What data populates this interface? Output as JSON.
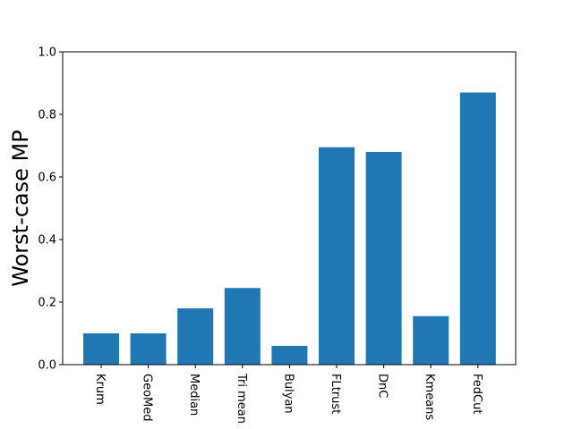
{
  "chart_data": {
    "type": "bar",
    "categories": [
      "Krum",
      "GeoMed",
      "Median",
      "Tri mean",
      "Bulyan",
      "FLtrust",
      "DnC",
      "Kmeans",
      "FedCut"
    ],
    "values": [
      0.1,
      0.1,
      0.18,
      0.245,
      0.06,
      0.695,
      0.68,
      0.155,
      0.87
    ],
    "title": "",
    "xlabel": "",
    "ylabel": "Worst-case MP",
    "ylim": [
      0,
      1.0
    ],
    "yticks": [
      "0.0",
      "0.2",
      "0.4",
      "0.6",
      "0.8",
      "1.0"
    ],
    "bar_color": "#1f77b4",
    "x_tick_rotation": "vertical (rotated -90°)",
    "grid": false,
    "legend": "none"
  }
}
